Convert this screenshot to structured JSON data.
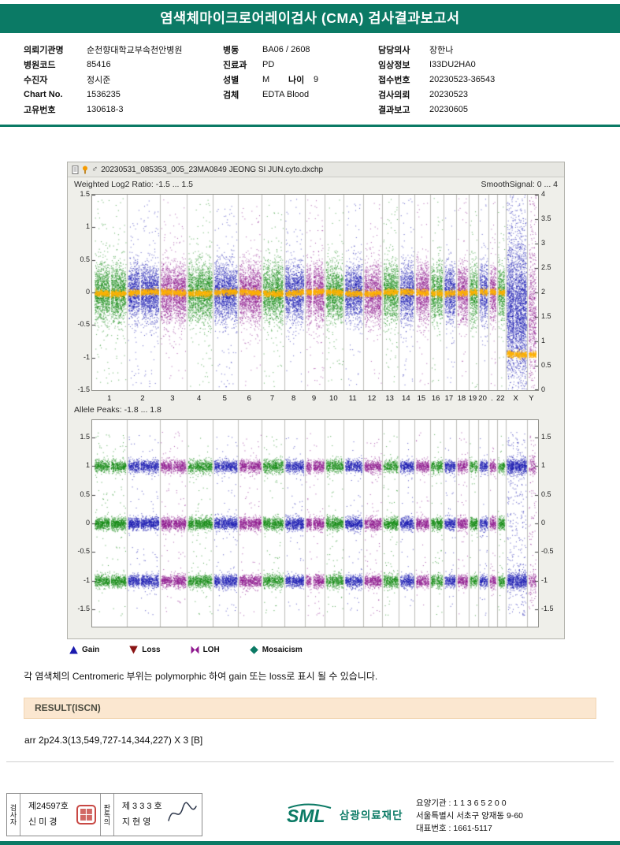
{
  "colors": {
    "teal": "#0b7a65",
    "result_bar_bg": "#fbe7d0",
    "stamp_red": "#be2823",
    "smooth_orange": "#ffb200"
  },
  "header": {
    "title": "염색체마이크로어레이검사 (CMA) 검사결과보고서"
  },
  "patient_info": {
    "col1": [
      {
        "label": "의뢰기관명",
        "value": "순천향대학교부속천안병원"
      },
      {
        "label": "병원코드",
        "value": "85416"
      },
      {
        "label": "수진자",
        "value": "정시준"
      },
      {
        "label": "Chart No.",
        "value": "1536235"
      },
      {
        "label": "고유번호",
        "value": "130618-3"
      }
    ],
    "col2": [
      {
        "label": "병동",
        "value": "BA06 / 2608"
      },
      {
        "label": "진료과",
        "value": "PD"
      },
      {
        "label": "성별",
        "value": "M",
        "label2": "나이",
        "value2": "9"
      },
      {
        "label": "검체",
        "value": "EDTA Blood"
      }
    ],
    "col3": [
      {
        "label": "담당의사",
        "value": "장한나"
      },
      {
        "label": "임상정보",
        "value": "I33DU2HA0"
      },
      {
        "label": "접수번호",
        "value": "20230523-36543"
      },
      {
        "label": "검사의뢰",
        "value": "20230523"
      },
      {
        "label": "결과보고",
        "value": "20230605"
      }
    ]
  },
  "chart": {
    "titlebar_text": "20230531_085353_005_23MA0849 JEONG SI JUN.cyto.dxchp",
    "male_symbol": "♂",
    "top_plot": {
      "label": "Weighted Log2 Ratio: -1.5 ... 1.5",
      "right_label": "SmoothSignal: 0 ... 4",
      "left_ticks": [
        1.5,
        1,
        0.5,
        0,
        -0.5,
        -1,
        -1.5
      ],
      "right_ticks": [
        4,
        3.5,
        3,
        2.5,
        2,
        1.5,
        1,
        0.5,
        0
      ],
      "left_range": [
        -1.5,
        1.5
      ],
      "right_range": [
        0,
        4
      ]
    },
    "bottom_plot": {
      "label": "Allele Peaks: -1.8 ... 1.8",
      "left_ticks": [
        1.5,
        1,
        0.5,
        0,
        -0.5,
        -1,
        -1.5
      ],
      "right_ticks": [
        1.5,
        1,
        0.5,
        0,
        -0.5,
        -1,
        -1.5
      ],
      "range": [
        -1.8,
        1.8
      ]
    },
    "point_colors": [
      "#128a12",
      "#1a1ab2",
      "#8f1a8f"
    ],
    "smooth_color": "#ffb200",
    "chromosomes": [
      {
        "label": "1",
        "size": 249,
        "cen": 0.5,
        "gap": 0.022
      },
      {
        "label": "2",
        "size": 243,
        "cen": 0.39,
        "gap": 0.02
      },
      {
        "label": "3",
        "size": 198,
        "cen": 0.46,
        "gap": 0.02
      },
      {
        "label": "4",
        "size": 190,
        "cen": 0.26
      },
      {
        "label": "5",
        "size": 182,
        "cen": 0.27
      },
      {
        "label": "6",
        "size": 171,
        "cen": 0.36
      },
      {
        "label": "7",
        "size": 159,
        "cen": 0.38
      },
      {
        "label": "8",
        "size": 146,
        "cen": 0.31
      },
      {
        "label": "9",
        "size": 141,
        "cen": 0.35,
        "gap": 0.05
      },
      {
        "label": "10",
        "size": 134,
        "cen": 0.3
      },
      {
        "label": "11",
        "size": 135,
        "cen": 0.4
      },
      {
        "label": "12",
        "size": 133,
        "cen": 0.27
      },
      {
        "label": "13",
        "size": 115,
        "cen": 0.16
      },
      {
        "label": "14",
        "size": 107,
        "cen": 0.16
      },
      {
        "label": "15",
        "size": 102,
        "cen": 0.19
      },
      {
        "label": "16",
        "size": 90,
        "cen": 0.41,
        "gap": 0.04
      },
      {
        "label": "17",
        "size": 83,
        "cen": 0.29
      },
      {
        "label": "18",
        "size": 80,
        "cen": 0.22
      },
      {
        "label": "19",
        "size": 59,
        "cen": 0.44,
        "gap": 0.03
      },
      {
        "label": "20",
        "size": 63,
        "cen": 0.44,
        "gap": 0.03
      },
      {
        "label": ".",
        "size": 48,
        "cen": 0.26
      },
      {
        "label": "22",
        "size": 51,
        "cen": 0.29
      },
      {
        "label": "X",
        "size": 155,
        "cen": 0.39
      },
      {
        "label": "Y",
        "size": 57,
        "cen": 0.45
      }
    ],
    "legend": [
      {
        "label": "Gain",
        "shape": "triangle-up",
        "color": "#1a1aae"
      },
      {
        "label": "Loss",
        "shape": "triangle-down",
        "color": "#8a1515"
      },
      {
        "label": "LOH",
        "shape": "bowtie",
        "color": "#8f1a8f"
      },
      {
        "label": "Mosaicism",
        "shape": "diamond",
        "color": "#0b7a65"
      }
    ]
  },
  "note": "각 염색체의 Centromeric 부위는 polymorphic 하여 gain 또는 loss로 표시 될 수 있습니다.",
  "result": {
    "header": "RESULT(ISCN)",
    "value": "arr 2p24.3(13,549,727-14,344,227) X 3 [B]"
  },
  "footer": {
    "stamps": [
      {
        "role": "검사자",
        "license": "제24597호",
        "name": "신 미 경",
        "mark": "seal"
      },
      {
        "role": "판독의",
        "license": "제 3 3 3 호",
        "name": "지 현 영",
        "mark": "signature"
      }
    ],
    "logo_text": "SML",
    "org_name": "삼광의료재단",
    "lines": [
      "요양기관 : 1 1 3 6 5 2 0 0",
      "서울특별시 서초구 양재동 9-60",
      "대표번호 : 1661-5117"
    ]
  }
}
